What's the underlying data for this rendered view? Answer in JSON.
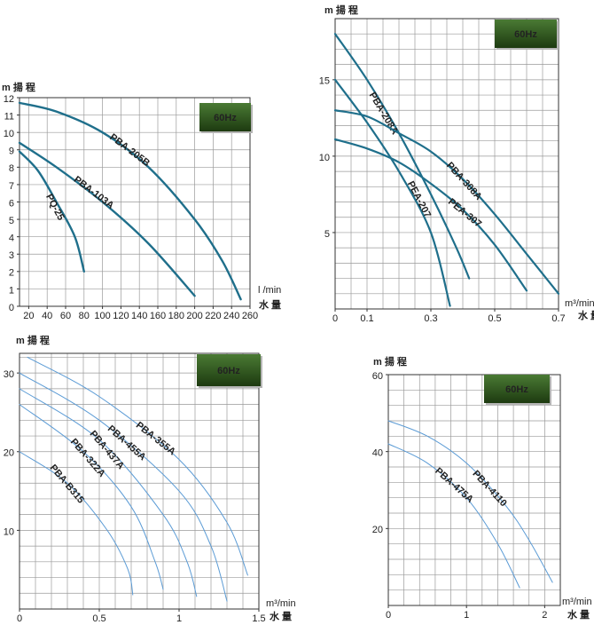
{
  "chart_data": [
    {
      "type": "line",
      "badge": "60Hz",
      "y_label": "m 揚 程",
      "x_unit": "l /min",
      "x_label": "水 量",
      "xlim": [
        10,
        260
      ],
      "ylim": [
        0,
        12
      ],
      "xticks": [
        20,
        40,
        60,
        80,
        100,
        120,
        140,
        160,
        180,
        200,
        220,
        240,
        260
      ],
      "yticks": [
        0,
        1,
        2,
        3,
        4,
        5,
        6,
        7,
        8,
        9,
        10,
        11,
        12
      ],
      "color": "#1f6f8b",
      "label_color": "#1f6f8b",
      "series": [
        {
          "name": "PBA-205B",
          "x": [
            10,
            50,
            100,
            150,
            200,
            230,
            250
          ],
          "values": [
            11.7,
            11.2,
            10,
            8,
            5,
            2.6,
            0.4
          ]
        },
        {
          "name": "PBA-103A",
          "x": [
            10,
            50,
            100,
            150,
            200
          ],
          "values": [
            9.4,
            8,
            6,
            3.6,
            0.6
          ]
        },
        {
          "name": "PQ-25",
          "x": [
            10,
            30,
            50,
            70,
            80
          ],
          "values": [
            8.9,
            7.8,
            6,
            4,
            2
          ]
        }
      ]
    },
    {
      "type": "line",
      "badge": "60Hz",
      "y_label": "m 揚 程",
      "x_unit": "m³/min",
      "x_label": "水 量",
      "xlim": [
        0,
        0.7
      ],
      "ylim": [
        0,
        19
      ],
      "xticks": [
        0,
        0.1,
        0.3,
        0.5,
        0.7
      ],
      "yticks": [
        5,
        10,
        15
      ],
      "color": "#1f6f8b",
      "label_color": "#1f6f8b",
      "series": [
        {
          "name": "PBA-208A",
          "x": [
            0,
            0.1,
            0.2,
            0.3,
            0.38,
            0.42
          ],
          "values": [
            18,
            15,
            11.5,
            7.5,
            4,
            2
          ]
        },
        {
          "name": "PEA-207",
          "x": [
            0,
            0.1,
            0.2,
            0.3,
            0.36
          ],
          "values": [
            15,
            12.2,
            9,
            5,
            0.2
          ]
        },
        {
          "name": "PBA-308A",
          "x": [
            0,
            0.1,
            0.2,
            0.3,
            0.4,
            0.5,
            0.6,
            0.7
          ],
          "values": [
            13,
            12.6,
            11.5,
            10.3,
            8.5,
            6.2,
            3.6,
            1
          ]
        },
        {
          "name": "PEA-307",
          "x": [
            0,
            0.1,
            0.2,
            0.3,
            0.4,
            0.5,
            0.6
          ],
          "values": [
            11.1,
            10.5,
            9.6,
            8.2,
            6.5,
            4.2,
            1.2
          ]
        }
      ]
    },
    {
      "type": "line",
      "badge": "60Hz",
      "y_label": "m 揚 程",
      "x_unit": "m³/min",
      "x_label": "水 量",
      "xlim": [
        0,
        1.5
      ],
      "ylim": [
        0,
        32.5
      ],
      "xticks": [
        0,
        0.5,
        1.0,
        1.5
      ],
      "yticks": [
        10,
        20,
        30
      ],
      "color": "#5b9bd5",
      "label_color": "#1f5fa0",
      "series": [
        {
          "name": "PBA-355A",
          "x": [
            0.05,
            0.5,
            1.0,
            1.3,
            1.43
          ],
          "values": [
            32,
            27,
            19,
            11,
            4.3
          ]
        },
        {
          "name": "PBA-455A",
          "x": [
            0,
            0.5,
            1.0,
            1.2,
            1.3
          ],
          "values": [
            30,
            24,
            15,
            8,
            1
          ]
        },
        {
          "name": "PBA-437A",
          "x": [
            0,
            0.5,
            0.9,
            1.05,
            1.11
          ],
          "values": [
            28,
            21.5,
            12,
            6,
            1.6
          ]
        },
        {
          "name": "PBA-322A",
          "x": [
            0,
            0.4,
            0.7,
            0.85,
            0.9
          ],
          "values": [
            26,
            20,
            13,
            6,
            2.5
          ]
        },
        {
          "name": "PBA-B315",
          "x": [
            0,
            0.3,
            0.55,
            0.68,
            0.71
          ],
          "values": [
            20,
            16,
            10,
            5,
            1.8
          ]
        }
      ]
    },
    {
      "type": "line",
      "badge": "60Hz",
      "y_label": "m 揚 程",
      "x_unit": "m³/min",
      "x_label": "水 量",
      "xlim": [
        0,
        2.2
      ],
      "ylim": [
        0,
        60
      ],
      "xticks": [
        0,
        1.0,
        2.0
      ],
      "yticks": [
        20,
        40,
        60
      ],
      "color": "#5b9bd5",
      "label_color": "#1f5fa0",
      "series": [
        {
          "name": "PBA-4110",
          "x": [
            0,
            0.5,
            1.0,
            1.5,
            1.8,
            2.1
          ],
          "values": [
            48,
            44,
            37,
            26,
            17,
            6
          ]
        },
        {
          "name": "PBA-475A",
          "x": [
            0,
            0.5,
            1.0,
            1.4,
            1.68
          ],
          "values": [
            42,
            37,
            28,
            16,
            4.6
          ]
        }
      ]
    }
  ]
}
